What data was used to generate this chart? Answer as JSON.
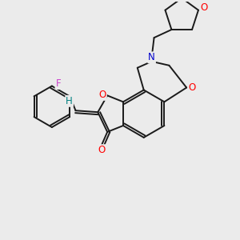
{
  "bg_color": "#ebebeb",
  "bond_color": "#1a1a1a",
  "atom_colors": {
    "O": "#ff0000",
    "N": "#0000cc",
    "F": "#cc44cc",
    "H": "#008080"
  },
  "figsize": [
    3.0,
    3.0
  ],
  "dpi": 100,
  "lw": 1.4,
  "font_size": 8.5
}
